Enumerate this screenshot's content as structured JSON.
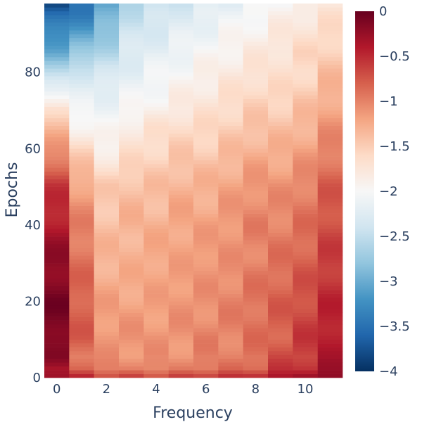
{
  "chart_data": {
    "type": "heatmap",
    "title": "",
    "xlabel": "Frequency",
    "ylabel": "Epochs",
    "x_range": [
      -0.5,
      11.5
    ],
    "y_range": [
      0,
      98
    ],
    "x_ticks": [
      "0",
      "2",
      "4",
      "6",
      "8",
      "10"
    ],
    "y_ticks": [
      "0",
      "20",
      "40",
      "60",
      "80"
    ],
    "colorbar": {
      "range": [
        -4,
        0
      ],
      "ticks": [
        "0",
        "−0.5",
        "−1",
        "−1.5",
        "−2",
        "−2.5",
        "−3",
        "−3.5",
        "−4"
      ],
      "colorscale": [
        "#053061",
        "#2166ac",
        "#4393c3",
        "#92c5de",
        "#d1e5f0",
        "#f7f7f7",
        "#fddbc7",
        "#f4a582",
        "#d6604d",
        "#b2182b",
        "#67001f"
      ]
    },
    "grid": false,
    "frequencies": [
      0,
      1,
      2,
      3,
      4,
      5,
      6,
      7,
      8,
      9,
      10,
      11
    ],
    "epoch_keyframes": [
      0,
      2,
      5,
      10,
      20,
      30,
      40,
      50,
      60,
      65,
      70,
      75,
      80,
      85,
      90,
      95,
      98
    ],
    "keyframe_values": [
      [
        -0.3,
        -0.5,
        -0.7,
        -0.7,
        -0.7,
        -0.7,
        -0.6,
        -0.6,
        -0.5,
        -0.4,
        -0.3,
        -0.2
      ],
      [
        -0.4,
        -0.8,
        -1.0,
        -1.0,
        -1.0,
        -1.0,
        -0.9,
        -0.9,
        -0.8,
        -0.6,
        -0.5,
        -0.3
      ],
      [
        -0.2,
        -0.9,
        -1.1,
        -1.1,
        -1.1,
        -1.1,
        -1.0,
        -1.0,
        -0.9,
        -0.7,
        -0.6,
        -0.4
      ],
      [
        -0.1,
        -0.8,
        -1.1,
        -1.1,
        -1.1,
        -1.1,
        -1.0,
        -1.0,
        -0.9,
        -0.8,
        -0.6,
        -0.4
      ],
      [
        -0.1,
        -0.8,
        -1.2,
        -1.2,
        -1.2,
        -1.1,
        -1.1,
        -1.0,
        -0.9,
        -0.8,
        -0.7,
        -0.5
      ],
      [
        -0.2,
        -0.9,
        -1.3,
        -1.3,
        -1.2,
        -1.2,
        -1.1,
        -1.1,
        -1.0,
        -0.9,
        -0.8,
        -0.6
      ],
      [
        -0.4,
        -1.0,
        -1.4,
        -1.3,
        -1.3,
        -1.2,
        -1.2,
        -1.1,
        -1.0,
        -1.0,
        -0.9,
        -0.7
      ],
      [
        -0.6,
        -1.2,
        -1.5,
        -1.4,
        -1.4,
        -1.3,
        -1.3,
        -1.2,
        -1.1,
        -1.1,
        -1.0,
        -0.8
      ],
      [
        -1.1,
        -1.6,
        -1.9,
        -1.7,
        -1.6,
        -1.5,
        -1.5,
        -1.4,
        -1.3,
        -1.3,
        -1.2,
        -1.0
      ],
      [
        -1.4,
        -1.9,
        -2.0,
        -1.8,
        -1.7,
        -1.6,
        -1.6,
        -1.5,
        -1.4,
        -1.4,
        -1.3,
        -1.1
      ],
      [
        -1.6,
        -2.1,
        -2.1,
        -2.0,
        -1.9,
        -1.8,
        -1.7,
        -1.6,
        -1.5,
        -1.5,
        -1.4,
        -1.2
      ],
      [
        -2.2,
        -2.2,
        -2.2,
        -2.1,
        -2.0,
        -1.9,
        -1.8,
        -1.7,
        -1.6,
        -1.6,
        -1.5,
        -1.3
      ],
      [
        -2.6,
        -2.4,
        -2.4,
        -2.2,
        -2.1,
        -2.0,
        -1.9,
        -1.8,
        -1.7,
        -1.7,
        -1.6,
        -1.4
      ],
      [
        -3.0,
        -2.8,
        -2.6,
        -2.3,
        -2.2,
        -2.1,
        -2.0,
        -1.9,
        -1.8,
        -1.7,
        -1.6,
        -1.5
      ],
      [
        -3.3,
        -3.1,
        -2.8,
        -2.4,
        -2.3,
        -2.2,
        -2.1,
        -2.0,
        -1.9,
        -1.8,
        -1.7,
        -1.6
      ],
      [
        -3.6,
        -3.4,
        -3.0,
        -2.5,
        -2.4,
        -2.3,
        -2.2,
        -2.1,
        -2.0,
        -1.9,
        -1.8,
        -1.7
      ],
      [
        -3.9,
        -3.5,
        -3.1,
        -2.6,
        -2.5,
        -2.4,
        -2.3,
        -2.2,
        -2.1,
        -2.0,
        -1.9,
        -1.8
      ]
    ]
  }
}
